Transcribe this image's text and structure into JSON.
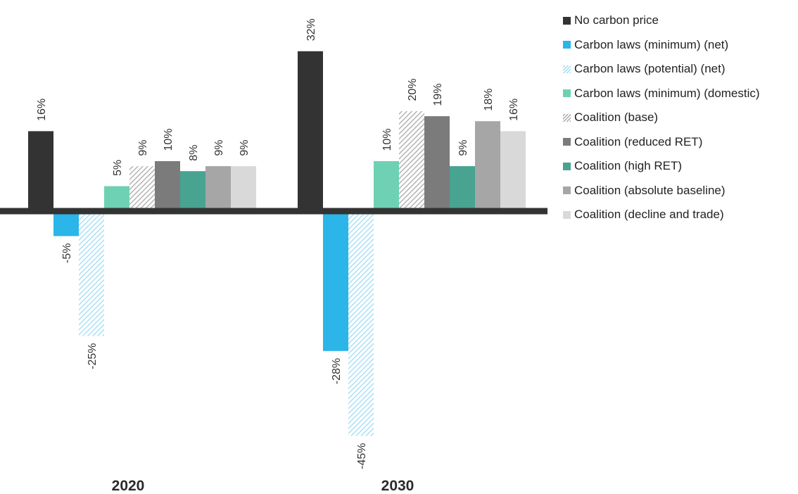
{
  "chart_data": {
    "type": "bar",
    "categories": [
      "2020",
      "2030"
    ],
    "series": [
      {
        "name": "No carbon price",
        "values": [
          16,
          32
        ],
        "labels": [
          "16%",
          "32%"
        ],
        "color": "#333333",
        "pattern": "solid"
      },
      {
        "name": "Carbon laws (minimum) (net)",
        "values": [
          -5,
          -28
        ],
        "labels": [
          "-5%",
          "-28%"
        ],
        "color": "#2bb5e8",
        "pattern": "solid"
      },
      {
        "name": "Carbon laws (potential) (net)",
        "values": [
          -25,
          -45
        ],
        "labels": [
          "-25%",
          "-45%"
        ],
        "color": "#9ddcf2",
        "pattern": "hatch"
      },
      {
        "name": "Carbon laws (minimum) (domestic)",
        "values": [
          5,
          10
        ],
        "labels": [
          "5%",
          "10%"
        ],
        "color": "#6fd1b3",
        "pattern": "solid"
      },
      {
        "name": "Coalition (base)",
        "values": [
          9,
          20
        ],
        "labels": [
          "9%",
          "20%"
        ],
        "color": "#a9a9a9",
        "pattern": "hatch"
      },
      {
        "name": "Coalition (reduced RET)",
        "values": [
          10,
          19
        ],
        "labels": [
          "10%",
          "19%"
        ],
        "color": "#7b7b7b",
        "pattern": "solid"
      },
      {
        "name": "Coalition (high RET)",
        "values": [
          8,
          9
        ],
        "labels": [
          "8%",
          "9%"
        ],
        "color": "#48a391",
        "pattern": "solid"
      },
      {
        "name": "Coalition (absolute baseline)",
        "values": [
          9,
          18
        ],
        "labels": [
          "9%",
          "18%"
        ],
        "color": "#a6a6a6",
        "pattern": "solid"
      },
      {
        "name": "Coalition (decline and trade)",
        "values": [
          9,
          16
        ],
        "labels": [
          "9%",
          "16%"
        ],
        "color": "#d9d9d9",
        "pattern": "solid"
      }
    ],
    "xlabel": "",
    "ylabel": "",
    "ylim": [
      -45,
      32
    ],
    "grid": false,
    "legend_position": "top-right",
    "axis_color": "#333333"
  }
}
